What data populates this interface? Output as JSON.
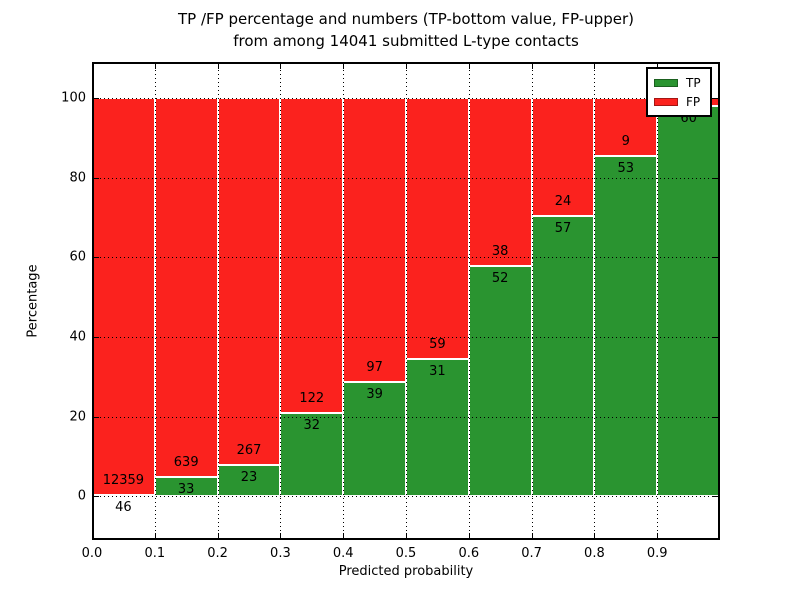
{
  "title": {
    "line1": "TP /FP percentage and numbers (TP-bottom value, FP-upper)",
    "line2": "from among 14041 submitted L-type contacts"
  },
  "colors": {
    "tp": "#2a9430",
    "fp": "#fb221e",
    "grid": "#000000",
    "background": "#ffffff"
  },
  "legend": {
    "position": "upper right",
    "items": [
      {
        "label": "TP",
        "color_key": "tp"
      },
      {
        "label": "FP",
        "color_key": "fp"
      }
    ]
  },
  "axes": {
    "xlabel": "Predicted probability",
    "ylabel": "Percentage",
    "xtick_labels": [
      "0.0",
      "0.1",
      "0.2",
      "0.3",
      "0.4",
      "0.5",
      "0.6",
      "0.7",
      "0.8",
      "0.9"
    ],
    "xtick_values": [
      0.0,
      0.1,
      0.2,
      0.3,
      0.4,
      0.5,
      0.6,
      0.7,
      0.8,
      0.9
    ],
    "ytick_labels": [
      "0",
      "20",
      "40",
      "60",
      "80",
      "100"
    ],
    "ytick_values": [
      0,
      20,
      40,
      60,
      80,
      100
    ],
    "xlim": [
      0.0,
      1.0
    ],
    "ylim": [
      -11,
      109
    ],
    "grid": true
  },
  "chart_data": {
    "type": "bar",
    "stacked": true,
    "normalized_to_percent": true,
    "title": "TP /FP percentage and numbers (TP-bottom value, FP-upper) from among 14041 submitted L-type contacts",
    "xlabel": "Predicted probability",
    "ylabel": "Percentage",
    "total_submitted": 14041,
    "bins": [
      {
        "range": [
          0.0,
          0.1
        ],
        "tp": 46,
        "fp": 12359,
        "tp_pct": 0.37,
        "tp_label": "46",
        "fp_label": "12359",
        "fp_hidden": false
      },
      {
        "range": [
          0.1,
          0.2
        ],
        "tp": 33,
        "fp": 639,
        "tp_pct": 4.91,
        "tp_label": "33",
        "fp_label": "639",
        "fp_hidden": false
      },
      {
        "range": [
          0.2,
          0.3
        ],
        "tp": 23,
        "fp": 267,
        "tp_pct": 7.93,
        "tp_label": "23",
        "fp_label": "267",
        "fp_hidden": false
      },
      {
        "range": [
          0.3,
          0.4
        ],
        "tp": 32,
        "fp": 122,
        "tp_pct": 20.78,
        "tp_label": "32",
        "fp_label": "122",
        "fp_hidden": false
      },
      {
        "range": [
          0.4,
          0.5
        ],
        "tp": 39,
        "fp": 97,
        "tp_pct": 28.68,
        "tp_label": "39",
        "fp_label": "97",
        "fp_hidden": false
      },
      {
        "range": [
          0.5,
          0.6
        ],
        "tp": 31,
        "fp": 59,
        "tp_pct": 34.44,
        "tp_label": "31",
        "fp_label": "59",
        "fp_hidden": false
      },
      {
        "range": [
          0.6,
          0.7
        ],
        "tp": 52,
        "fp": 38,
        "tp_pct": 57.78,
        "tp_label": "52",
        "fp_label": "38",
        "fp_hidden": false
      },
      {
        "range": [
          0.7,
          0.8
        ],
        "tp": 57,
        "fp": 24,
        "tp_pct": 70.37,
        "tp_label": "57",
        "fp_label": "24",
        "fp_hidden": false
      },
      {
        "range": [
          0.8,
          0.9
        ],
        "tp": 53,
        "fp": 9,
        "tp_pct": 85.48,
        "tp_label": "53",
        "fp_label": "9",
        "fp_hidden": false
      },
      {
        "range": [
          0.9,
          1.0
        ],
        "tp": 60,
        "fp": null,
        "tp_pct": 98.0,
        "tp_label": "60",
        "fp_label": "",
        "fp_hidden": true
      }
    ],
    "series": [
      {
        "name": "TP",
        "counts": [
          46,
          33,
          23,
          32,
          39,
          31,
          52,
          57,
          53,
          60
        ]
      },
      {
        "name": "FP",
        "counts": [
          12359,
          639,
          267,
          122,
          97,
          59,
          38,
          24,
          9,
          null
        ]
      }
    ]
  }
}
